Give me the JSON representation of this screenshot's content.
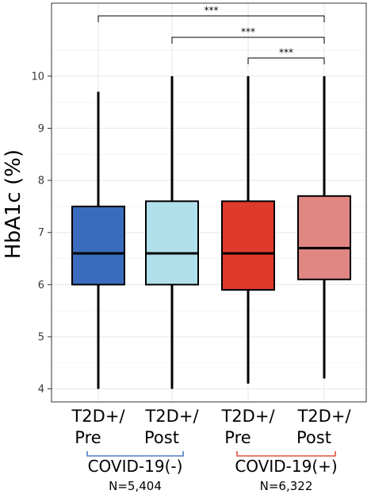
{
  "chart_data": {
    "type": "boxplot",
    "ylabel": "HbA1c (%)",
    "ylim": [
      3.75,
      11.4
    ],
    "yticks": [
      4,
      5,
      6,
      7,
      8,
      9,
      10
    ],
    "grid": true,
    "categories": [
      {
        "line1": "T2D+/",
        "line2": "Pre"
      },
      {
        "line1": "T2D+/",
        "line2": "Post"
      },
      {
        "line1": "T2D+/",
        "line2": "Pre"
      },
      {
        "line1": "T2D+/",
        "line2": "Post"
      }
    ],
    "boxes": [
      {
        "min": 4.0,
        "q1": 6.0,
        "median": 6.6,
        "q3": 7.5,
        "max": 9.7,
        "color": "#3b6bbd"
      },
      {
        "min": 4.0,
        "q1": 6.0,
        "median": 6.6,
        "q3": 7.6,
        "max": 10.0,
        "color": "#b2e0ea"
      },
      {
        "min": 4.1,
        "q1": 5.9,
        "median": 6.6,
        "q3": 7.6,
        "max": 10.0,
        "color": "#e03a2c"
      },
      {
        "min": 4.2,
        "q1": 6.1,
        "median": 6.7,
        "q3": 7.7,
        "max": 10.0,
        "color": "#e08784"
      }
    ],
    "significance": [
      {
        "from": 0,
        "to": 3,
        "label": "***"
      },
      {
        "from": 1,
        "to": 3,
        "label": "***"
      },
      {
        "from": 2,
        "to": 3,
        "label": "***"
      }
    ],
    "groups": [
      {
        "label": "COVID-19(-)",
        "n": "N=5,404",
        "color": "#4f7fc4"
      },
      {
        "label": "COVID-19(+)",
        "n": "N=6,322",
        "color": "#e0503f"
      }
    ]
  }
}
